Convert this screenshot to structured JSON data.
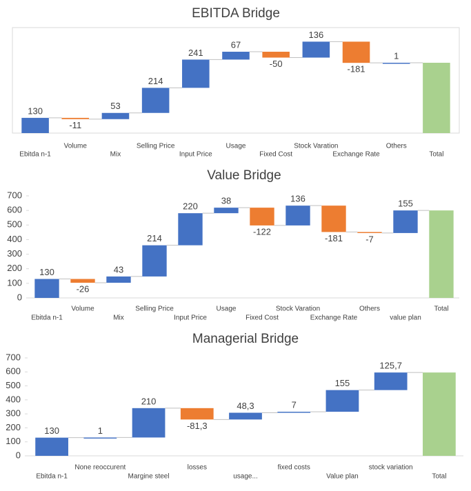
{
  "chart_data": [
    {
      "type": "waterfall",
      "title": "EBITDA Bridge",
      "categories": [
        "Ebitda n-1",
        "Volume",
        "Mix",
        "Selling Price",
        "Input Price",
        "Usage",
        "Fixed Cost",
        "Stock Varation",
        "Exchange Rate",
        "Others",
        "Total"
      ],
      "values": [
        130,
        -11,
        53,
        214,
        241,
        67,
        -50,
        136,
        -181,
        1,
        600
      ],
      "value_labels": [
        "130",
        "-11",
        "53",
        "214",
        "241",
        "67",
        "-50",
        "136",
        "-181",
        "1",
        null
      ],
      "totals": [
        false,
        false,
        false,
        false,
        false,
        false,
        false,
        false,
        false,
        false,
        true
      ],
      "colors": {
        "increase": "#4472c4",
        "decrease": "#ed7d31",
        "total": "#a9d18e"
      },
      "ylim": [
        0,
        900
      ]
    },
    {
      "type": "waterfall",
      "title": "Value Bridge",
      "categories": [
        "Ebitda n-1",
        "Volume",
        "Mix",
        "Selling Price",
        "Input Price",
        "Usage",
        "Fixed Cost",
        "Stock Varation",
        "Exchange Rate",
        "Others",
        "value plan",
        "Total"
      ],
      "values": [
        130,
        -26,
        43,
        214,
        220,
        38,
        -122,
        136,
        -181,
        -7,
        155,
        600
      ],
      "value_labels": [
        "130",
        "-26",
        "43",
        "214",
        "220",
        "38",
        "-122",
        "136",
        "-181",
        "-7",
        "155",
        null
      ],
      "totals": [
        false,
        false,
        false,
        false,
        false,
        false,
        false,
        false,
        false,
        false,
        false,
        true
      ],
      "colors": {
        "increase": "#4472c4",
        "decrease": "#ed7d31",
        "total": "#a9d18e"
      },
      "ylim": [
        0,
        700
      ],
      "yticks": [
        0,
        100,
        200,
        300,
        400,
        500,
        600,
        700
      ]
    },
    {
      "type": "waterfall",
      "title": "Managerial Bridge",
      "categories": [
        "Ebitda n-1",
        "None reoccurent",
        "Margine steel",
        "losses",
        "usage...",
        "fixed costs",
        "Value plan",
        "stock variation",
        "Total"
      ],
      "values": [
        130,
        1,
        210,
        -81.3,
        48.3,
        7,
        155,
        125.7,
        595.7
      ],
      "value_labels": [
        "130",
        "1",
        "210",
        "-81,3",
        "48,3",
        "7",
        "155",
        "125,7",
        null
      ],
      "totals": [
        false,
        false,
        false,
        false,
        false,
        false,
        false,
        false,
        true
      ],
      "colors": {
        "increase": "#4472c4",
        "decrease": "#ed7d31",
        "total": "#a9d18e"
      },
      "ylim": [
        0,
        700
      ],
      "yticks": [
        0,
        100,
        200,
        300,
        400,
        500,
        600,
        700
      ]
    }
  ]
}
